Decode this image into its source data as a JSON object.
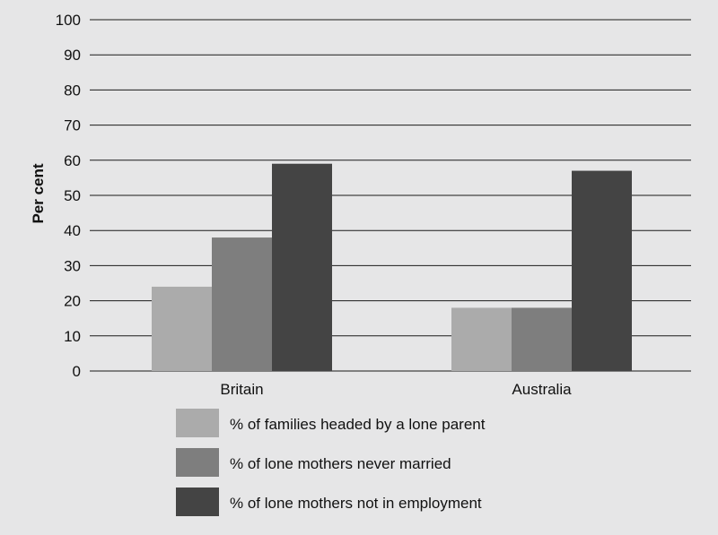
{
  "chart_data": {
    "type": "bar",
    "categories": [
      "Britain",
      "Australia"
    ],
    "series": [
      {
        "name": "% of families headed by a lone parent",
        "values": [
          24,
          18
        ],
        "color": "#ababab"
      },
      {
        "name": "% of lone mothers never married",
        "values": [
          38,
          18
        ],
        "color": "#7e7e7e"
      },
      {
        "name": "% of lone mothers not in employment",
        "values": [
          59,
          57
        ],
        "color": "#444444"
      }
    ],
    "ylabel": "Per cent",
    "xlabel": "",
    "ylim": [
      0,
      100
    ],
    "yticks": [
      "0",
      "10",
      "20",
      "30",
      "40",
      "50",
      "60",
      "70",
      "80",
      "90",
      "100"
    ],
    "grid": true,
    "legend_position": "bottom"
  }
}
